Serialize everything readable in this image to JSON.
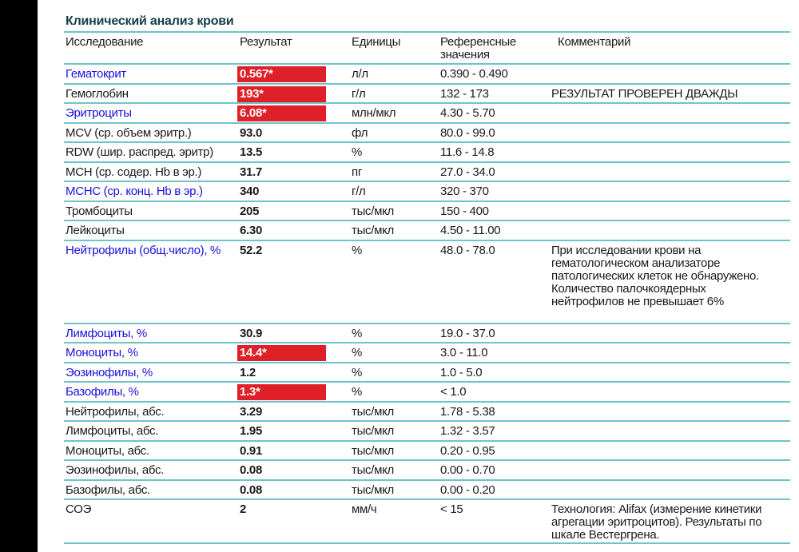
{
  "title": "Клинический анализ крови",
  "headers": {
    "test": "Исследование",
    "result": "Результат",
    "units": "Единицы",
    "reference": "Референсные значения",
    "comment": "Комментарий"
  },
  "colors": {
    "flag": "#e02028",
    "link": "#1a10e0",
    "rule": "#6fc3cc",
    "title": "#12404a"
  },
  "rows": [
    {
      "name": "Гематокрит",
      "result": "0.567*",
      "units": "л/л",
      "ref": "0.390 - 0.490",
      "comment": "",
      "flag": true,
      "link": true
    },
    {
      "name": "Гемоглобин",
      "result": "193*",
      "units": "г/л",
      "ref": "132 - 173",
      "comment": "РЕЗУЛЬТАТ ПРОВЕРЕН ДВАЖДЫ",
      "flag": true,
      "link": false
    },
    {
      "name": "Эритроциты",
      "result": "6.08*",
      "units": "млн/мкл",
      "ref": "4.30 - 5.70",
      "comment": "",
      "flag": true,
      "link": true
    },
    {
      "name": "MCV (ср. объем эритр.)",
      "result": "93.0",
      "units": "фл",
      "ref": "80.0 - 99.0",
      "comment": "",
      "flag": false,
      "link": false
    },
    {
      "name": "RDW (шир. распред. эритр)",
      "result": "13.5",
      "units": "%",
      "ref": "11.6 - 14.8",
      "comment": "",
      "flag": false,
      "link": false
    },
    {
      "name": "MCH (ср. содер. Hb в эр.)",
      "result": "31.7",
      "units": "пг",
      "ref": "27.0 - 34.0",
      "comment": "",
      "flag": false,
      "link": false
    },
    {
      "name": "MCHC (ср. конц. Hb в эр.)",
      "result": "340",
      "units": "г/л",
      "ref": "320 - 370",
      "comment": "",
      "flag": false,
      "link": true
    },
    {
      "name": "Тромбоциты",
      "result": "205",
      "units": "тыс/мкл",
      "ref": "150 - 400",
      "comment": "",
      "flag": false,
      "link": false
    },
    {
      "name": "Лейкоциты",
      "result": "6.30",
      "units": "тыс/мкл",
      "ref": "4.50 - 11.00",
      "comment": "",
      "flag": false,
      "link": false
    },
    {
      "name": "Нейтрофилы (общ.число), %",
      "result": "52.2",
      "units": "%",
      "ref": "48.0 - 78.0",
      "comment": "При исследовании крови на гематологическом анализаторе патологических клеток не обнаружено. Количество палочкоядерных нейтрофилов не превышает 6%",
      "flag": false,
      "link": true
    },
    {
      "name": "Лимфоциты, %",
      "result": "30.9",
      "units": "%",
      "ref": "19.0 - 37.0",
      "comment": "",
      "flag": false,
      "link": true
    },
    {
      "name": "Моноциты, %",
      "result": "14.4*",
      "units": "%",
      "ref": "3.0 - 11.0",
      "comment": "",
      "flag": true,
      "link": true
    },
    {
      "name": "Эозинофилы, %",
      "result": "1.2",
      "units": "%",
      "ref": "1.0 - 5.0",
      "comment": "",
      "flag": false,
      "link": true
    },
    {
      "name": "Базофилы, %",
      "result": "1.3*",
      "units": "%",
      "ref": "< 1.0",
      "comment": "",
      "flag": true,
      "link": true
    },
    {
      "name": "Нейтрофилы, абс.",
      "result": "3.29",
      "units": "тыс/мкл",
      "ref": "1.78 - 5.38",
      "comment": "",
      "flag": false,
      "link": false
    },
    {
      "name": "Лимфоциты, абс.",
      "result": "1.95",
      "units": "тыс/мкл",
      "ref": "1.32 - 3.57",
      "comment": "",
      "flag": false,
      "link": false
    },
    {
      "name": "Моноциты, абс.",
      "result": "0.91",
      "units": "тыс/мкл",
      "ref": "0.20 - 0.95",
      "comment": "",
      "flag": false,
      "link": false
    },
    {
      "name": "Эозинофилы, абс.",
      "result": "0.08",
      "units": "тыс/мкл",
      "ref": "0.00 - 0.70",
      "comment": "",
      "flag": false,
      "link": false
    },
    {
      "name": "Базофилы, абс.",
      "result": "0.08",
      "units": "тыс/мкл",
      "ref": "0.00 - 0.20",
      "comment": "",
      "flag": false,
      "link": false
    },
    {
      "name": "СОЭ",
      "result": "2",
      "units": "мм/ч",
      "ref": "< 15",
      "comment": "Технология: Alifax (измерение кинетики агрегации эритроцитов). Результаты по шкале Вестергрена.",
      "flag": false,
      "link": false
    }
  ]
}
